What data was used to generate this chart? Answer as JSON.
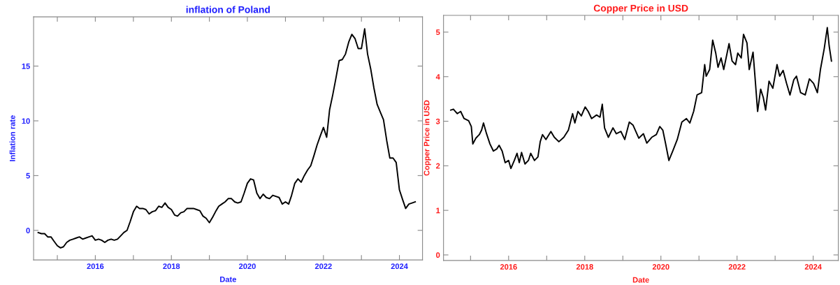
{
  "chart_data": [
    {
      "type": "line",
      "title": "inflation of Poland",
      "xlabel": "Date",
      "ylabel": "Inflation rate",
      "x": [
        "2014-07",
        "2014-08",
        "2014-09",
        "2014-10",
        "2014-11",
        "2014-12",
        "2015-01",
        "2015-02",
        "2015-03",
        "2015-04",
        "2015-05",
        "2015-06",
        "2015-07",
        "2015-08",
        "2015-09",
        "2015-10",
        "2015-11",
        "2015-12",
        "2016-01",
        "2016-02",
        "2016-03",
        "2016-04",
        "2016-05",
        "2016-06",
        "2016-07",
        "2016-08",
        "2016-09",
        "2016-10",
        "2016-11",
        "2016-12",
        "2017-01",
        "2017-02",
        "2017-03",
        "2017-04",
        "2017-05",
        "2017-06",
        "2017-07",
        "2017-08",
        "2017-09",
        "2017-10",
        "2017-11",
        "2017-12",
        "2018-01",
        "2018-02",
        "2018-03",
        "2018-04",
        "2018-05",
        "2018-06",
        "2018-07",
        "2018-08",
        "2018-09",
        "2018-10",
        "2018-11",
        "2018-12",
        "2019-01",
        "2019-02",
        "2019-03",
        "2019-04",
        "2019-05",
        "2019-06",
        "2019-07",
        "2019-08",
        "2019-09",
        "2019-10",
        "2019-11",
        "2019-12",
        "2020-01",
        "2020-02",
        "2020-03",
        "2020-04",
        "2020-05",
        "2020-06",
        "2020-07",
        "2020-08",
        "2020-09",
        "2020-10",
        "2020-11",
        "2020-12",
        "2021-01",
        "2021-02",
        "2021-03",
        "2021-04",
        "2021-05",
        "2021-06",
        "2021-07",
        "2021-08",
        "2021-09",
        "2021-10",
        "2021-11",
        "2021-12",
        "2022-01",
        "2022-02",
        "2022-03",
        "2022-04",
        "2022-05",
        "2022-06",
        "2022-07",
        "2022-08",
        "2022-09",
        "2022-10",
        "2022-11",
        "2022-12",
        "2023-01",
        "2023-02",
        "2023-03",
        "2023-04",
        "2023-05",
        "2023-06",
        "2023-07",
        "2023-08",
        "2023-09",
        "2023-10",
        "2023-11",
        "2023-12",
        "2024-01",
        "2024-02",
        "2024-03",
        "2024-04",
        "2024-05",
        "2024-06"
      ],
      "series": [
        {
          "color": "#000000",
          "values": [
            -0.2,
            -0.3,
            -0.3,
            -0.6,
            -0.6,
            -1.0,
            -1.4,
            -1.6,
            -1.5,
            -1.1,
            -0.9,
            -0.8,
            -0.7,
            -0.6,
            -0.8,
            -0.7,
            -0.6,
            -0.5,
            -0.9,
            -0.8,
            -0.9,
            -1.1,
            -0.9,
            -0.8,
            -0.9,
            -0.8,
            -0.5,
            -0.2,
            0.0,
            0.8,
            1.7,
            2.2,
            2.0,
            2.0,
            1.9,
            1.5,
            1.7,
            1.8,
            2.2,
            2.1,
            2.5,
            2.1,
            1.9,
            1.4,
            1.3,
            1.6,
            1.7,
            2.0,
            2.0,
            2.0,
            1.9,
            1.8,
            1.3,
            1.1,
            0.7,
            1.2,
            1.7,
            2.2,
            2.4,
            2.6,
            2.9,
            2.9,
            2.6,
            2.5,
            2.6,
            3.4,
            4.3,
            4.7,
            4.6,
            3.4,
            2.9,
            3.3,
            3.0,
            2.9,
            3.2,
            3.1,
            3.0,
            2.4,
            2.6,
            2.4,
            3.2,
            4.3,
            4.7,
            4.4,
            5.0,
            5.5,
            5.9,
            6.8,
            7.8,
            8.6,
            9.4,
            8.5,
            11.0,
            12.4,
            13.9,
            15.5,
            15.6,
            16.1,
            17.2,
            17.9,
            17.5,
            16.6,
            16.6,
            18.4,
            16.1,
            14.7,
            13.0,
            11.5,
            10.8,
            10.1,
            8.2,
            6.6,
            6.6,
            6.2,
            3.7,
            2.8,
            2.0,
            2.4,
            2.5,
            2.6
          ]
        }
      ],
      "xlim": [
        "2014-05-18",
        "2024-08-10"
      ],
      "xticks": [
        {
          "value": "2015",
          "label": null
        },
        "2016",
        {
          "value": "2017",
          "label": null
        },
        "2018",
        {
          "value": "2019",
          "label": null
        },
        "2020",
        {
          "value": "2021",
          "label": null
        },
        "2022",
        {
          "value": "2023",
          "label": null
        },
        "2024"
      ],
      "ylim": [
        -2.7,
        19.5
      ],
      "yticks": [
        0,
        5,
        10,
        15
      ],
      "grid": false
    },
    {
      "type": "line",
      "title": "Copper Price in USD",
      "xlabel": "Date",
      "ylabel": "Copper Price in USD",
      "x": [
        2014.48,
        2014.55,
        2014.65,
        2014.74,
        2014.83,
        2014.95,
        2015.02,
        2015.06,
        2015.14,
        2015.23,
        2015.29,
        2015.34,
        2015.42,
        2015.51,
        2015.6,
        2015.69,
        2015.75,
        2015.83,
        2015.91,
        2016.0,
        2016.06,
        2016.15,
        2016.22,
        2016.28,
        2016.34,
        2016.43,
        2016.52,
        2016.58,
        2016.68,
        2016.77,
        2016.83,
        2016.89,
        2016.98,
        2017.11,
        2017.2,
        2017.32,
        2017.45,
        2017.57,
        2017.68,
        2017.74,
        2017.82,
        2017.91,
        2018.01,
        2018.09,
        2018.18,
        2018.31,
        2018.4,
        2018.46,
        2018.52,
        2018.62,
        2018.74,
        2018.83,
        2018.95,
        2019.05,
        2019.17,
        2019.27,
        2019.42,
        2019.54,
        2019.63,
        2019.76,
        2019.88,
        2019.97,
        2020.05,
        2020.12,
        2020.21,
        2020.31,
        2020.43,
        2020.55,
        2020.67,
        2020.76,
        2020.86,
        2020.95,
        2021.07,
        2021.15,
        2021.19,
        2021.28,
        2021.36,
        2021.44,
        2021.5,
        2021.58,
        2021.65,
        2021.79,
        2021.87,
        2021.96,
        2022.02,
        2022.11,
        2022.17,
        2022.26,
        2022.32,
        2022.42,
        2022.48,
        2022.54,
        2022.62,
        2022.69,
        2022.75,
        2022.84,
        2022.94,
        2023.05,
        2023.12,
        2023.21,
        2023.3,
        2023.39,
        2023.49,
        2023.56,
        2023.67,
        2023.79,
        2023.9,
        2024.01,
        2024.11,
        2024.19,
        2024.29,
        2024.37,
        2024.42,
        2024.48
      ],
      "series": [
        {
          "color": "#000000",
          "values": [
            3.25,
            3.27,
            3.17,
            3.22,
            3.06,
            3.01,
            2.88,
            2.49,
            2.62,
            2.7,
            2.8,
            2.96,
            2.72,
            2.49,
            2.33,
            2.38,
            2.46,
            2.33,
            2.07,
            2.12,
            1.94,
            2.12,
            2.28,
            2.07,
            2.3,
            2.04,
            2.12,
            2.28,
            2.12,
            2.2,
            2.54,
            2.7,
            2.59,
            2.77,
            2.64,
            2.54,
            2.64,
            2.8,
            3.17,
            2.96,
            3.22,
            3.12,
            3.32,
            3.22,
            3.06,
            3.14,
            3.09,
            3.38,
            2.85,
            2.64,
            2.85,
            2.72,
            2.77,
            2.59,
            2.98,
            2.91,
            2.62,
            2.72,
            2.51,
            2.64,
            2.7,
            2.88,
            2.8,
            2.51,
            2.12,
            2.33,
            2.59,
            2.98,
            3.06,
            2.96,
            3.22,
            3.59,
            3.64,
            4.27,
            4.01,
            4.16,
            4.82,
            4.53,
            4.21,
            4.42,
            4.16,
            4.74,
            4.35,
            4.27,
            4.53,
            4.42,
            4.95,
            4.76,
            4.16,
            4.55,
            3.9,
            3.22,
            3.72,
            3.53,
            3.25,
            3.9,
            3.74,
            4.27,
            4.01,
            4.14,
            3.85,
            3.59,
            3.93,
            4.01,
            3.64,
            3.59,
            3.95,
            3.85,
            3.64,
            4.16,
            4.63,
            5.1,
            4.69,
            4.35
          ]
        }
      ],
      "xlim": [
        2014.29,
        2024.66
      ],
      "xticks": [
        {
          "value": 2015,
          "label": null
        },
        2016,
        {
          "value": 2017,
          "label": null
        },
        2018,
        {
          "value": 2019,
          "label": null
        },
        2020,
        {
          "value": 2021,
          "label": null
        },
        2022,
        {
          "value": 2023,
          "label": null
        },
        2024
      ],
      "ylim": [
        -0.125,
        5.375
      ],
      "yticks": [
        0,
        1,
        2,
        3,
        4,
        5
      ],
      "grid": false
    }
  ]
}
